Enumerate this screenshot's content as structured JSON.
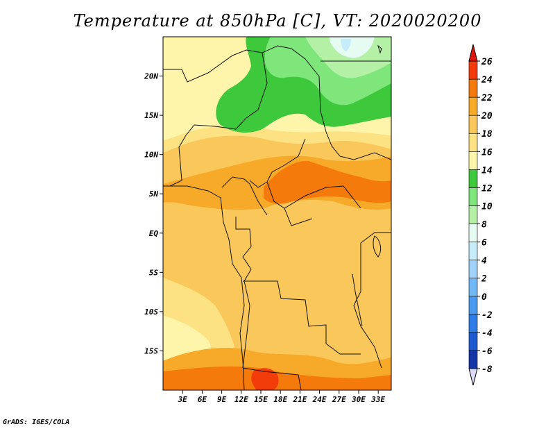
{
  "title": "Temperature at 850hPa [C], VT: 2020020200",
  "credit": "GrADS: IGES/COLA",
  "map": {
    "lon_range": [
      0,
      35
    ],
    "lat_range": [
      -20,
      25
    ],
    "lon_ticks": [
      {
        "lon": 3,
        "label": "3E"
      },
      {
        "lon": 6,
        "label": "6E"
      },
      {
        "lon": 9,
        "label": "9E"
      },
      {
        "lon": 12,
        "label": "12E"
      },
      {
        "lon": 15,
        "label": "15E"
      },
      {
        "lon": 18,
        "label": "18E"
      },
      {
        "lon": 21,
        "label": "21E"
      },
      {
        "lon": 24,
        "label": "24E"
      },
      {
        "lon": 27,
        "label": "27E"
      },
      {
        "lon": 30,
        "label": "30E"
      },
      {
        "lon": 33,
        "label": "33E"
      }
    ],
    "lat_ticks": [
      {
        "lat": 20,
        "label": "20N"
      },
      {
        "lat": 15,
        "label": "15N"
      },
      {
        "lat": 10,
        "label": "10N"
      },
      {
        "lat": 5,
        "label": "5N"
      },
      {
        "lat": 0,
        "label": "EQ"
      },
      {
        "lat": -5,
        "label": "5S"
      },
      {
        "lat": -10,
        "label": "10S"
      },
      {
        "lat": -15,
        "label": "15S"
      }
    ]
  },
  "colorbar": {
    "levels": [
      "-8",
      "-6",
      "-4",
      "-2",
      "0",
      "2",
      "4",
      "6",
      "8",
      "10",
      "12",
      "14",
      "16",
      "18",
      "20",
      "22",
      "24",
      "26"
    ],
    "colors": [
      "#0a1a78",
      "#1436a8",
      "#1e5ad2",
      "#2e7ce6",
      "#4a9af2",
      "#73b8f6",
      "#a0d2fa",
      "#c6ecfa",
      "#e6fbf2",
      "#b4f0a6",
      "#7ee67a",
      "#3ec83c",
      "#fff5aa",
      "#fce282",
      "#fac85a",
      "#f7aa2a",
      "#f47a0c",
      "#f23c0a",
      "#e0140a"
    ],
    "under_color": "#dcdcf8",
    "over_color": "#e0140a"
  }
}
